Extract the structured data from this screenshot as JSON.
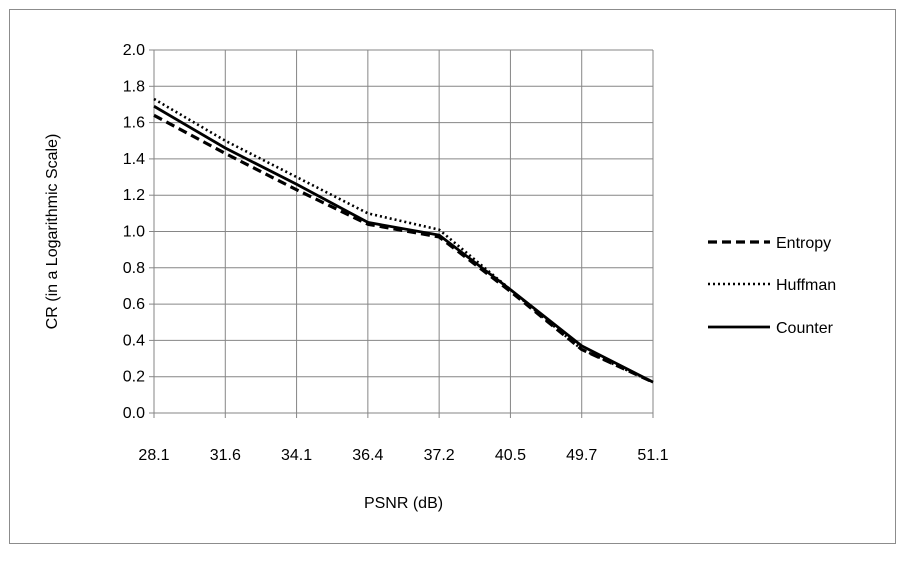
{
  "chart_data": {
    "type": "line",
    "title": "",
    "xlabel": "PSNR (dB)",
    "ylabel": "CR (in a Logarithmic Scale)",
    "categories": [
      "28.1",
      "31.6",
      "34.1",
      "36.4",
      "37.2",
      "40.5",
      "49.7",
      "51.1"
    ],
    "ylim": [
      0,
      2.0
    ],
    "yticks": [
      "0.0",
      "0.2",
      "0.4",
      "0.6",
      "0.8",
      "1.0",
      "1.2",
      "1.4",
      "1.6",
      "1.8",
      "2.0"
    ],
    "grid": true,
    "legend_position": "right",
    "series": [
      {
        "name": "Entropy",
        "style": "dashed",
        "values": [
          1.64,
          1.43,
          1.23,
          1.04,
          0.97,
          0.67,
          0.35,
          0.17
        ]
      },
      {
        "name": "Huffman",
        "style": "dotted",
        "values": [
          1.73,
          1.5,
          1.3,
          1.1,
          1.01,
          0.68,
          0.35,
          0.17
        ]
      },
      {
        "name": "Counter",
        "style": "solid",
        "values": [
          1.69,
          1.46,
          1.26,
          1.05,
          0.98,
          0.68,
          0.37,
          0.17
        ]
      }
    ]
  }
}
